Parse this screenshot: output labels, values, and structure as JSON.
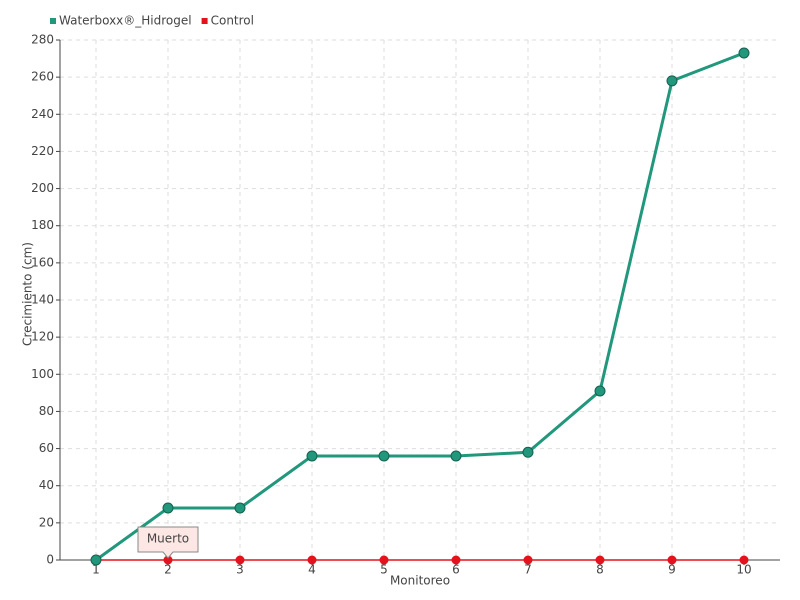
{
  "chart_data": {
    "type": "line",
    "categories": [
      "1",
      "2",
      "3",
      "4",
      "5",
      "6",
      "7",
      "8",
      "9",
      "10"
    ],
    "series": [
      {
        "name": "Waterboxx®_Hidrogel",
        "color": "#21977c",
        "values": [
          0,
          28,
          28,
          56,
          56,
          56,
          58,
          91,
          258,
          273
        ]
      },
      {
        "name": "Control",
        "color": "#e3121c",
        "values": [
          0,
          0,
          0,
          0,
          0,
          0,
          0,
          0,
          0,
          0
        ]
      }
    ],
    "xlabel": "Monitoreo",
    "ylabel": "Crecimiento (cm)",
    "ylim": [
      0,
      280
    ],
    "yticks": [
      0,
      20,
      40,
      60,
      80,
      100,
      120,
      140,
      160,
      180,
      200,
      220,
      240,
      260,
      280
    ],
    "grid": true,
    "legend": "top-left",
    "annotation": "Muerto"
  }
}
